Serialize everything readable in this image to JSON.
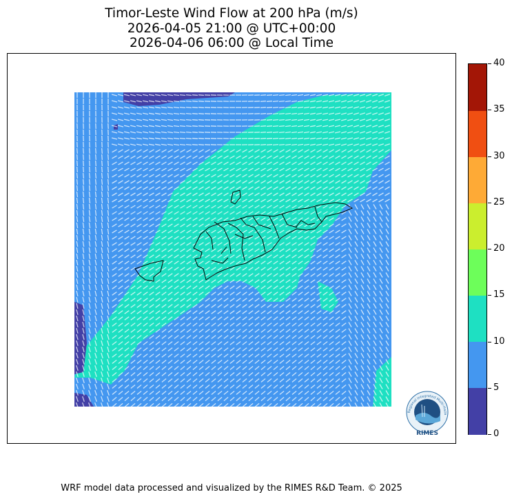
{
  "header": {
    "title_line1": "Timor-Leste Wind Flow at 200 hPa (m/s)",
    "title_line2": "2026-04-05 21:00 @ UTC+00:00",
    "title_line3": "2026-04-06 06:00 @ Local Time"
  },
  "map": {
    "region": "Timor-Leste",
    "pressure_level": "200 hPa",
    "variable": "Wind Flow",
    "units": "m/s",
    "wind_field": {
      "dominant_flow": "southwest-to-northeast",
      "speed_classes": [
        {
          "range": "0-5",
          "color": "#4340a6"
        },
        {
          "range": "5-10",
          "color": "#4497f0"
        },
        {
          "range": "10-15",
          "color": "#1ee0c2"
        }
      ]
    }
  },
  "colorbar": {
    "ticks": [
      "0",
      "5",
      "10",
      "15",
      "20",
      "25",
      "30",
      "35",
      "40"
    ],
    "colors": [
      "#4340a6",
      "#4497f0",
      "#1ee0c2",
      "#6dfe5a",
      "#cbee2e",
      "#feaa36",
      "#f04f12",
      "#a31606"
    ]
  },
  "logo": {
    "text": "RIMES",
    "ring_text": "Regional Integrated Multi-Hazard Early Warning System"
  },
  "footer": {
    "credit": "WRF model data processed and visualized by the RIMES R&D Team. © 2025"
  }
}
